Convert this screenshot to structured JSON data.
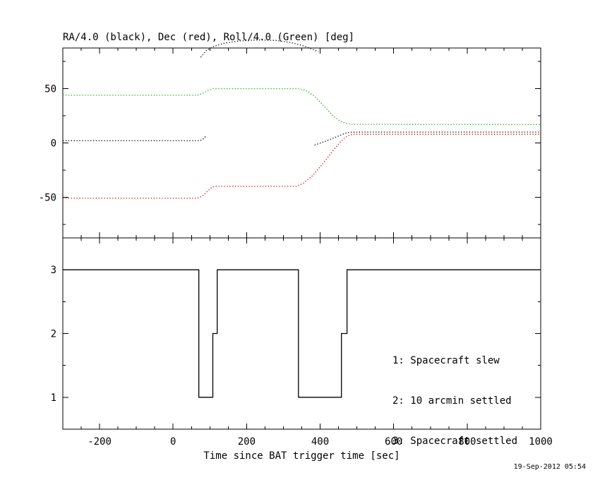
{
  "title": "RA/4.0 (black), Dec (red), Roll/4.0 (Green) [deg]",
  "xlabel": "Time since BAT trigger time [sec]",
  "timestamp": "19-Sep-2012 05:54",
  "legend": [
    "1: Spacecraft slew",
    "2: 10 arcmin settled",
    "3: Spacecraft settled"
  ],
  "colors": {
    "ra": "#000000",
    "dec": "#dd0000",
    "roll": "#00b400",
    "state": "#000000",
    "frame": "#000000",
    "background": "#ffffff"
  },
  "chart_data": [
    {
      "type": "line",
      "title": "RA/4.0 (black), Dec (red), Roll/4.0 (Green) [deg]",
      "xlim": [
        -300,
        1000
      ],
      "ylim": [
        -87.5,
        87.5
      ],
      "yticks": [
        50,
        0,
        -50
      ],
      "ytick_minor_step": 25,
      "xticks": [
        -200,
        0,
        200,
        400,
        600,
        800,
        1000
      ],
      "xtick_minor_step": 50,
      "grid": false,
      "series": [
        {
          "name": "RA/4.0",
          "color": "#000000",
          "style": "dotted",
          "segments": [
            [
              [
                -300,
                2
              ],
              [
                70,
                2
              ],
              [
                80,
                3
              ],
              [
                88,
                6
              ]
            ],
            [
              [
                75,
                79
              ],
              [
                90,
                85
              ],
              [
                110,
                89
              ],
              [
                140,
                92
              ],
              [
                180,
                94
              ],
              [
                230,
                95
              ],
              [
                280,
                94.5
              ],
              [
                320,
                92.5
              ],
              [
                350,
                90
              ],
              [
                375,
                87
              ],
              [
                395,
                84
              ]
            ],
            [
              [
                385,
                -2
              ],
              [
                410,
                1
              ],
              [
                440,
                5
              ],
              [
                465,
                8.5
              ],
              [
                480,
                9.8
              ],
              [
                520,
                10
              ],
              [
                1000,
                10
              ]
            ]
          ]
        },
        {
          "name": "Dec",
          "color": "#dd0000",
          "style": "dotted",
          "segments": [
            [
              [
                -300,
                -51
              ],
              [
                65,
                -51
              ],
              [
                80,
                -49
              ],
              [
                95,
                -44
              ],
              [
                108,
                -40.5
              ],
              [
                115,
                -40
              ],
              [
                335,
                -40
              ],
              [
                355,
                -37
              ],
              [
                380,
                -30
              ],
              [
                410,
                -18
              ],
              [
                435,
                -7
              ],
              [
                455,
                1
              ],
              [
                470,
                5.5
              ],
              [
                482,
                7.5
              ],
              [
                490,
                8
              ],
              [
                1000,
                8
              ]
            ]
          ]
        },
        {
          "name": "Roll/4.0",
          "color": "#00b400",
          "style": "dotted",
          "segments": [
            [
              [
                -300,
                44
              ],
              [
                65,
                44
              ],
              [
                80,
                45.5
              ],
              [
                95,
                48.5
              ],
              [
                108,
                50
              ],
              [
                340,
                50
              ],
              [
                360,
                48.5
              ],
              [
                385,
                43
              ],
              [
                410,
                34
              ],
              [
                435,
                25
              ],
              [
                455,
                20
              ],
              [
                470,
                18
              ],
              [
                485,
                17.2
              ],
              [
                1000,
                17
              ]
            ]
          ]
        }
      ]
    },
    {
      "type": "line",
      "xlim": [
        -300,
        1000
      ],
      "ylim": [
        0.5,
        3.5
      ],
      "yticks": [
        3,
        2,
        1
      ],
      "ytick_minor_step": 0.5,
      "xticks": [
        -200,
        0,
        200,
        400,
        600,
        800,
        1000
      ],
      "xtick_minor_step": 50,
      "xlabel": "Time since BAT trigger time [sec]",
      "annotations": [
        "1: Spacecraft slew",
        "2: 10 arcmin settled",
        "3: Spacecraft settled"
      ],
      "grid": false,
      "series": [
        {
          "name": "settle-state",
          "color": "#000000",
          "style": "solid",
          "segments": [
            [
              [
                -300,
                3
              ],
              [
                70,
                3
              ],
              [
                70,
                1
              ],
              [
                108,
                1
              ],
              [
                108,
                2
              ],
              [
                120,
                2
              ],
              [
                120,
                3
              ],
              [
                341,
                3
              ],
              [
                341,
                1
              ],
              [
                458,
                1
              ],
              [
                458,
                2
              ],
              [
                473,
                2
              ],
              [
                473,
                3
              ],
              [
                1000,
                3
              ]
            ]
          ]
        }
      ]
    }
  ]
}
